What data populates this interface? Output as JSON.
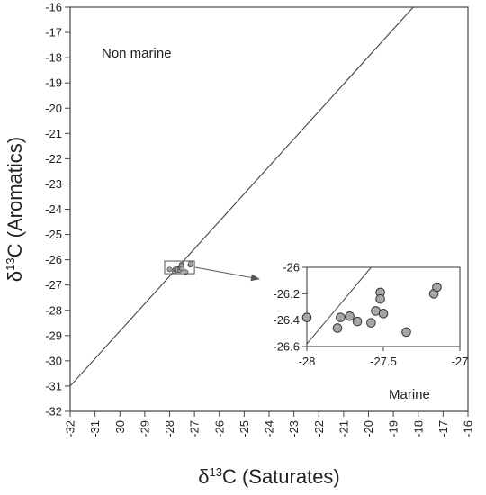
{
  "chart_data": [
    {
      "type": "scatter",
      "title": "",
      "xlabel": "δ¹³C (Saturates)",
      "xlabel_parts": {
        "base": "δ",
        "sup": "13",
        "rest": "C (Saturates)"
      },
      "ylabel": "δ¹³C (Aromatics)",
      "ylabel_parts": {
        "base": "δ",
        "sup": "13",
        "rest": "C (Aromatics)"
      },
      "xlim": [
        -32,
        -16
      ],
      "ylim": [
        -32,
        -16
      ],
      "x_ticks": [
        -32,
        -31,
        -30,
        -29,
        -28,
        -27,
        -26,
        -25,
        -24,
        -23,
        -22,
        -21,
        -20,
        -19,
        -18,
        -17,
        -16
      ],
      "y_ticks": [
        -32,
        -31,
        -30,
        -29,
        -28,
        -27,
        -26,
        -25,
        -24,
        -23,
        -22,
        -21,
        -20,
        -19,
        -18,
        -17,
        -16
      ],
      "x_tick_labels": [
        "-32",
        "-31",
        "-30",
        "-29",
        "-28",
        "-27",
        "-26",
        "-25",
        "-24",
        "-23",
        "-22",
        "-21",
        "-20",
        "-19",
        "-18",
        "-17",
        "-16"
      ],
      "y_tick_labels": [
        "-32",
        "-31",
        "-30",
        "-29",
        "-28",
        "-27",
        "-26",
        "-25",
        "-24",
        "-23",
        "-22",
        "-21",
        "-20",
        "-19",
        "-18",
        "-17",
        "-16"
      ],
      "reference_line": {
        "x": [
          -32,
          -18.2
        ],
        "y": [
          -31,
          -16
        ]
      },
      "annotations": {
        "upper_region": "Non marine"
      },
      "zoom_box": {
        "x": [
          -28.2,
          -27.0
        ],
        "y": [
          -26.55,
          -26.05
        ]
      },
      "series": [
        {
          "points": [
            {
              "x": -28.0,
              "y": -26.38
            },
            {
              "x": -27.8,
              "y": -26.46
            },
            {
              "x": -27.78,
              "y": -26.38
            },
            {
              "x": -27.72,
              "y": -26.37
            },
            {
              "x": -27.67,
              "y": -26.41
            },
            {
              "x": -27.58,
              "y": -26.42
            },
            {
              "x": -27.55,
              "y": -26.33
            },
            {
              "x": -27.52,
              "y": -26.19
            },
            {
              "x": -27.52,
              "y": -26.24
            },
            {
              "x": -27.5,
              "y": -26.35
            },
            {
              "x": -27.35,
              "y": -26.49
            },
            {
              "x": -27.17,
              "y": -26.2
            },
            {
              "x": -27.15,
              "y": -26.15
            }
          ]
        }
      ]
    },
    {
      "type": "scatter",
      "title": "",
      "xlim": [
        -28,
        -27
      ],
      "ylim": [
        -26.6,
        -26.0
      ],
      "x_ticks": [
        -28,
        -27.5,
        -27
      ],
      "y_ticks": [
        -26.0,
        -26.2,
        -26.4,
        -26.6
      ],
      "x_tick_labels": [
        "-28",
        "-27.5",
        "-27"
      ],
      "y_tick_labels": [
        "-26",
        "-26.2",
        "-26.4",
        "-26.6"
      ],
      "reference_line": {
        "x": [
          -28,
          -27.58
        ],
        "y": [
          -26.58,
          -26.0
        ]
      },
      "annotations": {
        "lower_region": "Marine"
      },
      "marker_color": "#a6a6a6",
      "series": [
        {
          "points": [
            {
              "x": -28.0,
              "y": -26.38
            },
            {
              "x": -27.8,
              "y": -26.46
            },
            {
              "x": -27.78,
              "y": -26.38
            },
            {
              "x": -27.72,
              "y": -26.37
            },
            {
              "x": -27.67,
              "y": -26.41
            },
            {
              "x": -27.58,
              "y": -26.42
            },
            {
              "x": -27.55,
              "y": -26.33
            },
            {
              "x": -27.52,
              "y": -26.19
            },
            {
              "x": -27.52,
              "y": -26.24
            },
            {
              "x": -27.5,
              "y": -26.35
            },
            {
              "x": -27.35,
              "y": -26.49
            },
            {
              "x": -27.17,
              "y": -26.2
            },
            {
              "x": -27.15,
              "y": -26.15
            }
          ]
        }
      ]
    }
  ]
}
